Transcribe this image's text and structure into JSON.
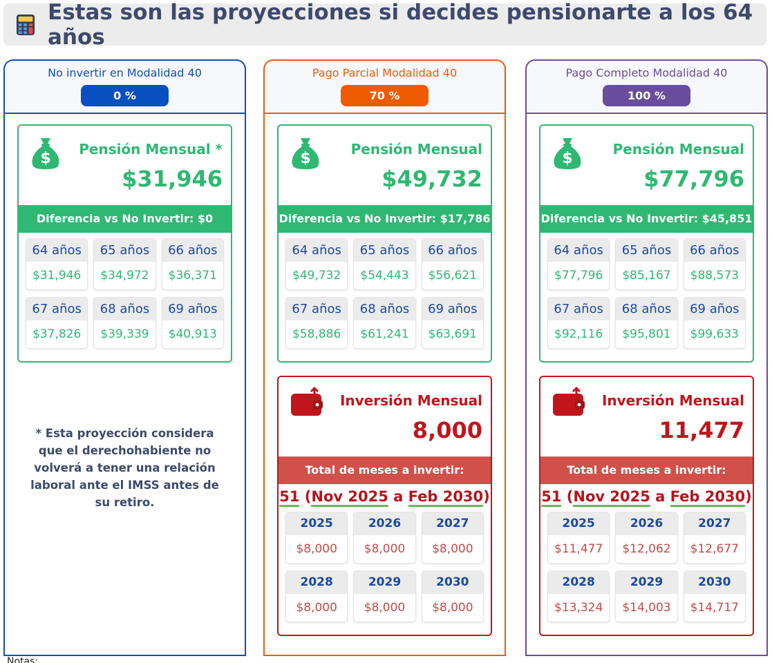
{
  "header": {
    "title": "Estas son las proyecciones si decides pensionarte a los 64 años"
  },
  "columns": [
    {
      "heading": "No invertir en Modalidad 40",
      "percent": "0 %",
      "pension": {
        "title": "Pensión Mensual *",
        "amount": "$31,946",
        "difference": "Diferencia vs No Invertir: $0",
        "years": [
          {
            "label": "64 años",
            "value": "$31,946"
          },
          {
            "label": "65 años",
            "value": "$34,972"
          },
          {
            "label": "66 años",
            "value": "$36,371"
          },
          {
            "label": "67 años",
            "value": "$37,826"
          },
          {
            "label": "68 años",
            "value": "$39,339"
          },
          {
            "label": "69 años",
            "value": "$40,913"
          }
        ]
      },
      "note": "* Esta proyección considera que el derechohabiente no volverá a tener una relación laboral ante el IMSS antes de su retiro."
    },
    {
      "heading": "Pago Parcial Modalidad 40",
      "percent": "70 %",
      "pension": {
        "title": "Pensión Mensual",
        "amount": "$49,732",
        "difference": "Diferencia vs No Invertir: $17,786",
        "years": [
          {
            "label": "64 años",
            "value": "$49,732"
          },
          {
            "label": "65 años",
            "value": "$54,443"
          },
          {
            "label": "66 años",
            "value": "$56,621"
          },
          {
            "label": "67 años",
            "value": "$58,886"
          },
          {
            "label": "68 años",
            "value": "$61,241"
          },
          {
            "label": "69 años",
            "value": "$63,691"
          }
        ]
      },
      "investment": {
        "title": "Inversión Mensual",
        "amount": "8,000",
        "months_label": "Total de meses a invertir:",
        "period": {
          "months": "51",
          "open": "(",
          "start": "Nov 2025",
          "connector": "a",
          "end": "Feb 2030",
          "close": ")"
        },
        "years": [
          {
            "label": "2025",
            "value": "$8,000"
          },
          {
            "label": "2026",
            "value": "$8,000"
          },
          {
            "label": "2027",
            "value": "$8,000"
          },
          {
            "label": "2028",
            "value": "$8,000"
          },
          {
            "label": "2029",
            "value": "$8,000"
          },
          {
            "label": "2030",
            "value": "$8,000"
          }
        ]
      }
    },
    {
      "heading": "Pago Completo Modalidad 40",
      "percent": "100 %",
      "pension": {
        "title": "Pensión Mensual",
        "amount": "$77,796",
        "difference": "Diferencia vs No Invertir: $45,851",
        "years": [
          {
            "label": "64 años",
            "value": "$77,796"
          },
          {
            "label": "65 años",
            "value": "$85,167"
          },
          {
            "label": "66 años",
            "value": "$88,573"
          },
          {
            "label": "67 años",
            "value": "$92,116"
          },
          {
            "label": "68 años",
            "value": "$95,801"
          },
          {
            "label": "69 años",
            "value": "$99,633"
          }
        ]
      },
      "investment": {
        "title": "Inversión Mensual",
        "amount": "11,477",
        "months_label": "Total de meses a invertir:",
        "period": {
          "months": "51",
          "open": "(",
          "start": "Nov 2025",
          "connector": "a",
          "end": "Feb 2030",
          "close": ")"
        },
        "years": [
          {
            "label": "2025",
            "value": "$11,477"
          },
          {
            "label": "2026",
            "value": "$12,062"
          },
          {
            "label": "2027",
            "value": "$12,677"
          },
          {
            "label": "2028",
            "value": "$13,324"
          },
          {
            "label": "2029",
            "value": "$14,003"
          },
          {
            "label": "2030",
            "value": "$14,717"
          }
        ]
      }
    }
  ],
  "footer": {
    "notes": "Notas:"
  }
}
